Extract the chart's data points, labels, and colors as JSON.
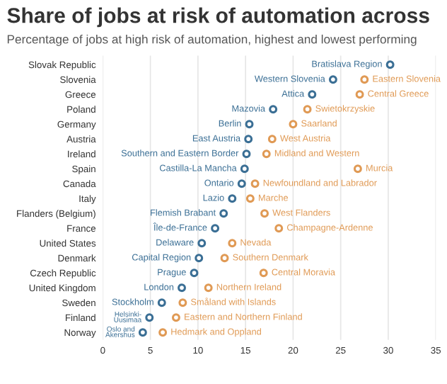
{
  "chart_data": {
    "type": "scatter",
    "title": "Share of jobs at risk of automation across",
    "subtitle": "Percentage of jobs at high risk of automation, highest and lowest performing",
    "categories": [
      "Slovak Republic",
      "Slovenia",
      "Greece",
      "Poland",
      "Germany",
      "Austria",
      "Ireland",
      "Spain",
      "Canada",
      "Italy",
      "Flanders (Belgium)",
      "France",
      "United States",
      "Denmark",
      "Czech Republic",
      "United Kingdom",
      "Sweden",
      "Finland",
      "Norway"
    ],
    "series": [
      {
        "color": "#3b6f95",
        "values": [
          30.2,
          24.2,
          22.0,
          17.9,
          15.4,
          15.3,
          15.1,
          14.9,
          14.6,
          13.6,
          12.7,
          11.8,
          10.4,
          10.1,
          9.6,
          8.3,
          6.2,
          4.9,
          4.2
        ]
      },
      {
        "color": "#e09a55",
        "values": [
          null,
          27.5,
          27.0,
          21.5,
          20.0,
          17.8,
          17.2,
          26.8,
          16.0,
          15.5,
          17.0,
          18.5,
          13.6,
          12.8,
          16.9,
          11.1,
          8.4,
          7.7,
          6.3
        ]
      }
    ],
    "annotations": [
      {
        "text": "Bratislava Region",
        "x": 30.2,
        "y": "Slovak Republic"
      },
      {
        "text": "Western Slovenia",
        "x": 24.2,
        "y": "Slovenia"
      },
      {
        "text": "Eastern Slovenia",
        "x": 27.5,
        "y": "Slovenia"
      },
      {
        "text": "Attica",
        "x": 22.0,
        "y": "Greece"
      },
      {
        "text": "Central Greece",
        "x": 27.0,
        "y": "Greece"
      },
      {
        "text": "Mazovia",
        "x": 17.9,
        "y": "Poland"
      },
      {
        "text": "Swietokrzyskie",
        "x": 21.5,
        "y": "Poland"
      },
      {
        "text": "Berlin",
        "x": 15.4,
        "y": "Germany"
      },
      {
        "text": "Saarland",
        "x": 20.0,
        "y": "Germany"
      },
      {
        "text": "East Austria",
        "x": 15.3,
        "y": "Austria"
      },
      {
        "text": "West Austria",
        "x": 17.8,
        "y": "Austria"
      },
      {
        "text": "Southern and Eastern Border",
        "x": 15.1,
        "y": "Ireland"
      },
      {
        "text": "Midland and Western",
        "x": 17.2,
        "y": "Ireland"
      },
      {
        "text": "Castilla-La Mancha",
        "x": 14.9,
        "y": "Spain"
      },
      {
        "text": "Murcia",
        "x": 26.8,
        "y": "Spain"
      },
      {
        "text": "Ontario",
        "x": 14.6,
        "y": "Canada"
      },
      {
        "text": "Newfoundland and Labrador",
        "x": 16.0,
        "y": "Canada"
      },
      {
        "text": "Lazio",
        "x": 13.6,
        "y": "Italy"
      },
      {
        "text": "Marche",
        "x": 15.5,
        "y": "Italy"
      },
      {
        "text": "Flemish Brabant",
        "x": 12.7,
        "y": "Flanders (Belgium)"
      },
      {
        "text": "West Flanders",
        "x": 17.0,
        "y": "Flanders (Belgium)"
      },
      {
        "text": "Île-de-France",
        "x": 11.8,
        "y": "France"
      },
      {
        "text": "Champagne-Ardenne",
        "x": 18.5,
        "y": "France"
      },
      {
        "text": "Delaware",
        "x": 10.4,
        "y": "United States"
      },
      {
        "text": "Nevada",
        "x": 13.6,
        "y": "United States"
      },
      {
        "text": "Capital Region",
        "x": 10.1,
        "y": "Denmark"
      },
      {
        "text": "Southern Denmark",
        "x": 12.8,
        "y": "Denmark"
      },
      {
        "text": "Prague",
        "x": 9.6,
        "y": "Czech Republic"
      },
      {
        "text": "Central Moravia",
        "x": 16.9,
        "y": "Czech Republic"
      },
      {
        "text": "London",
        "x": 8.3,
        "y": "United Kingdom"
      },
      {
        "text": "Northern Ireland",
        "x": 11.1,
        "y": "United Kingdom"
      },
      {
        "text": "Stockholm",
        "x": 6.2,
        "y": "Sweden"
      },
      {
        "text": "Småland with Islands",
        "x": 8.4,
        "y": "Sweden"
      },
      {
        "text": "Helsinki-\nUusimaa",
        "x": 4.9,
        "y": "Finland"
      },
      {
        "text": "Eastern and Northern Finland",
        "x": 7.7,
        "y": "Finland"
      },
      {
        "text": "Oslo and\nAkershus",
        "x": 4.2,
        "y": "Norway"
      },
      {
        "text": "Hedmark and Oppland",
        "x": 6.3,
        "y": "Norway"
      }
    ],
    "xlim": [
      0,
      35
    ],
    "xticks": [
      0,
      5,
      10,
      15,
      20,
      25,
      30,
      35
    ],
    "grid": "x",
    "marker": "circle",
    "orientation": "horizontal"
  }
}
